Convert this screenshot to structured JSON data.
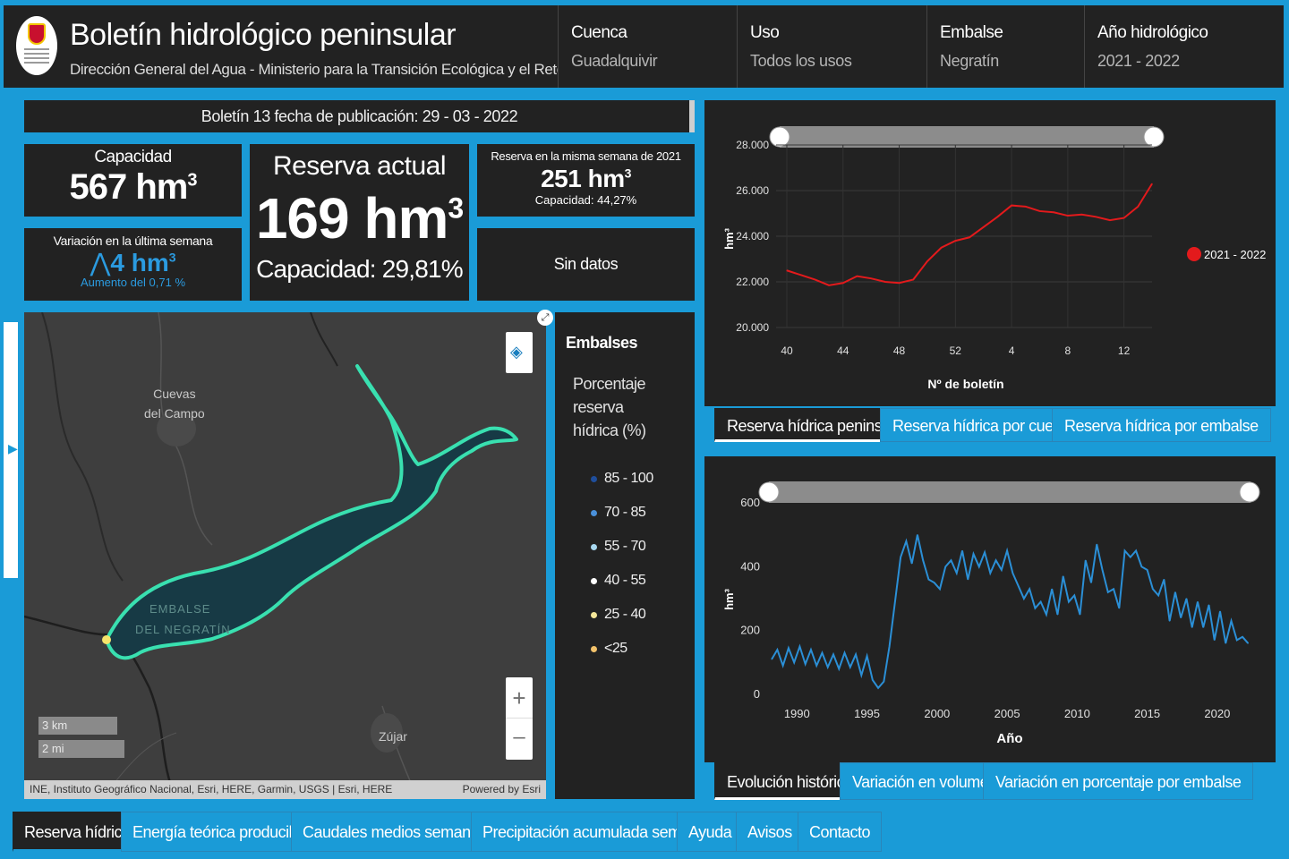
{
  "header": {
    "title": "Boletín hidrológico peninsular",
    "subtitle": "Dirección General del Agua - Ministerio para la Transición Ecológica y el Reto Demográfico",
    "filters": [
      {
        "label": "Cuenca",
        "value": "Guadalquivir"
      },
      {
        "label": "Uso",
        "value": "Todos los usos"
      },
      {
        "label": "Embalse",
        "value": "Negratín"
      },
      {
        "label": "Año hidrológico",
        "value": "2021 - 2022"
      }
    ]
  },
  "bulletin": {
    "label": "Boletín 13 fecha de publicación:",
    "date": "29 - 03 - 2022"
  },
  "kpis": {
    "capacity": {
      "label": "Capacidad",
      "value": "567 hm",
      "exp": "3"
    },
    "current": {
      "label": "Reserva actual",
      "value": "169 hm",
      "exp": "3",
      "capacity": "Capacidad: 29,81%"
    },
    "same_week": {
      "label": "Reserva en la misma semana de 2021",
      "value": "251 hm",
      "exp": "3",
      "capacity": "Capacidad: 44,27%"
    },
    "weekly": {
      "label": "Variación en la última semana",
      "arrow": "⋀",
      "value": "4 hm",
      "exp": "3",
      "note": "Aumento del 0,71 %"
    },
    "no_data": "Sin datos"
  },
  "map": {
    "place_1": "Cuevas",
    "place_2": "del Campo",
    "place_3": "Zújar",
    "reservoir_1": "EMBALSE",
    "reservoir_2": "DEL NEGRATÍN",
    "scale_km": "3 km",
    "scale_mi": "2 mi",
    "attribution": "INE, Instituto Geográfico Nacional, Esri, HERE, Garmin, USGS | Esri, HERE",
    "powered": "Powered by Esri",
    "zoom_in": "+",
    "zoom_out": "–",
    "icons": [
      "layers-icon",
      "expand-icon",
      "plus-icon",
      "minus-icon"
    ]
  },
  "legend": {
    "title": "Embalses",
    "subtitle_1": "Porcentaje reserva",
    "subtitle_2": "hídrica (%)",
    "items": [
      {
        "label": "85 - 100",
        "color": "#1f4e9c"
      },
      {
        "label": "70 - 85",
        "color": "#4a90d9"
      },
      {
        "label": "55 - 70",
        "color": "#a8d8f0"
      },
      {
        "label": "40 - 55",
        "color": "#ffffff"
      },
      {
        "label": "25 - 40",
        "color": "#f5e79a"
      },
      {
        "label": "<25",
        "color": "#f3c26b"
      }
    ]
  },
  "tabs_top": [
    "Reserva hídrica peninsular",
    "Reserva hídrica por cuenca",
    "Reserva hídrica por embalse"
  ],
  "tabs_mid": [
    "Evolución histórica",
    "Variación en volumen",
    "Variación en porcentaje por embalse"
  ],
  "tabs_bottom": [
    "Reserva hídrica",
    "Energía teórica producible",
    "Caudales medios semanales",
    "Precipitación acumulada semanal",
    "Ayuda",
    "Avisos",
    "Contacto"
  ],
  "chart_data": [
    {
      "type": "line",
      "x_tick_labels": [
        "40",
        "44",
        "48",
        "52",
        "4",
        "8",
        "12"
      ],
      "xlabel": "Nº de boletín",
      "ylabel": "hm³",
      "ylim": [
        20000,
        28000
      ],
      "y_ticks": [
        "20.000",
        "22.000",
        "24.000",
        "26.000",
        "28.000"
      ],
      "legend_position": "right",
      "series": [
        {
          "name": "2021 - 2022",
          "color": "#e31a1c",
          "x_index": [
            0,
            1,
            2,
            3,
            4,
            5,
            6,
            7,
            8,
            9,
            10,
            11,
            12,
            13,
            14,
            15,
            16,
            17,
            18,
            19,
            20,
            21,
            22,
            23,
            24,
            25,
            26
          ],
          "values": [
            22500,
            22300,
            22100,
            21850,
            21950,
            22250,
            22150,
            22000,
            21950,
            22100,
            22900,
            23500,
            23800,
            23950,
            24400,
            24850,
            25350,
            25300,
            25100,
            25050,
            24900,
            24950,
            24850,
            24700,
            24800,
            25300,
            26300
          ]
        }
      ]
    },
    {
      "type": "line",
      "x_ticks": [
        1990,
        1995,
        2000,
        2005,
        2010,
        2015,
        2020
      ],
      "xlabel": "Año",
      "ylabel": "hm³",
      "ylim": [
        0,
        600
      ],
      "y_ticks": [
        0,
        200,
        400,
        600
      ],
      "series": [
        {
          "color": "#2b8fd6",
          "x": [
            1988.2,
            1988.6,
            1989.0,
            1989.4,
            1989.8,
            1990.2,
            1990.6,
            1991.0,
            1991.4,
            1991.8,
            1992.2,
            1992.6,
            1993.0,
            1993.4,
            1993.8,
            1994.2,
            1994.6,
            1995.0,
            1995.4,
            1995.8,
            1996.2,
            1996.6,
            1997.0,
            1997.4,
            1997.8,
            1998.2,
            1998.6,
            1999.0,
            1999.4,
            1999.8,
            2000.2,
            2000.6,
            2001.0,
            2001.4,
            2001.8,
            2002.2,
            2002.6,
            2003.0,
            2003.4,
            2003.8,
            2004.2,
            2004.6,
            2005.0,
            2005.4,
            2005.8,
            2006.2,
            2006.6,
            2007.0,
            2007.4,
            2007.8,
            2008.2,
            2008.6,
            2009.0,
            2009.4,
            2009.8,
            2010.2,
            2010.6,
            2011.0,
            2011.4,
            2011.8,
            2012.2,
            2012.6,
            2013.0,
            2013.4,
            2013.8,
            2014.2,
            2014.6,
            2015.0,
            2015.4,
            2015.8,
            2016.2,
            2016.6,
            2017.0,
            2017.4,
            2017.8,
            2018.2,
            2018.6,
            2019.0,
            2019.4,
            2019.8,
            2020.2,
            2020.6,
            2021.0,
            2021.4,
            2021.8,
            2022.2
          ],
          "values": [
            110,
            140,
            90,
            145,
            100,
            150,
            95,
            140,
            90,
            130,
            85,
            125,
            80,
            130,
            85,
            125,
            60,
            120,
            45,
            20,
            40,
            150,
            290,
            430,
            480,
            410,
            500,
            420,
            360,
            350,
            330,
            400,
            420,
            380,
            450,
            360,
            440,
            400,
            445,
            380,
            420,
            390,
            450,
            380,
            340,
            300,
            330,
            270,
            290,
            250,
            330,
            250,
            370,
            290,
            310,
            250,
            420,
            350,
            470,
            390,
            320,
            330,
            270,
            450,
            430,
            450,
            400,
            390,
            330,
            310,
            360,
            230,
            320,
            240,
            300,
            210,
            290,
            210,
            280,
            170,
            260,
            160,
            230,
            170,
            180,
            160
          ]
        }
      ]
    }
  ]
}
